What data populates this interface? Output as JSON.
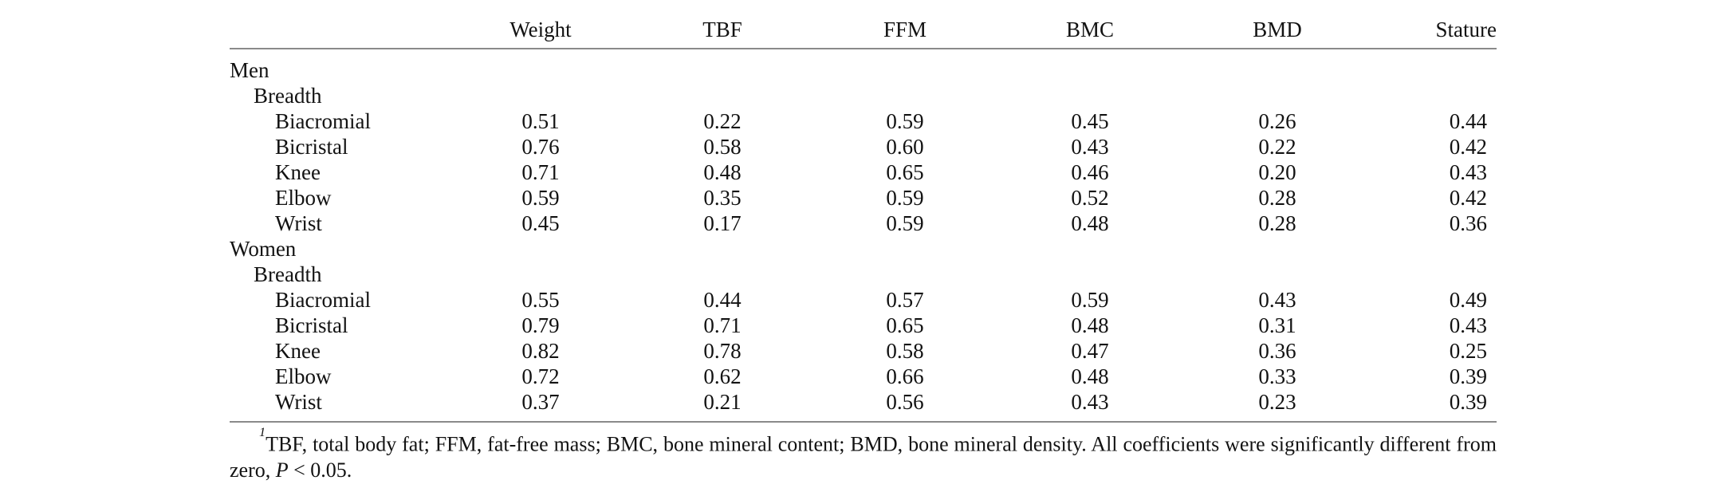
{
  "page": {
    "background": "#ffffff",
    "text_color": "#121212",
    "rule_color": "#8a8a8a"
  },
  "table": {
    "columns": [
      "",
      "Weight",
      "TBF",
      "FFM",
      "BMC",
      "BMD",
      "Stature"
    ],
    "rows": [
      {
        "label": "Men",
        "indent": 0,
        "values": [
          "",
          "",
          "",
          "",
          "",
          ""
        ]
      },
      {
        "label": "Breadth",
        "indent": 1,
        "values": [
          "",
          "",
          "",
          "",
          "",
          ""
        ]
      },
      {
        "label": "Biacromial",
        "indent": 2,
        "values": [
          "0.51",
          "0.22",
          "0.59",
          "0.45",
          "0.26",
          "0.44"
        ]
      },
      {
        "label": "Bicristal",
        "indent": 2,
        "values": [
          "0.76",
          "0.58",
          "0.60",
          "0.43",
          "0.22",
          "0.42"
        ]
      },
      {
        "label": "Knee",
        "indent": 2,
        "values": [
          "0.71",
          "0.48",
          "0.65",
          "0.46",
          "0.20",
          "0.43"
        ]
      },
      {
        "label": "Elbow",
        "indent": 2,
        "values": [
          "0.59",
          "0.35",
          "0.59",
          "0.52",
          "0.28",
          "0.42"
        ]
      },
      {
        "label": "Wrist",
        "indent": 2,
        "values": [
          "0.45",
          "0.17",
          "0.59",
          "0.48",
          "0.28",
          "0.36"
        ]
      },
      {
        "label": "Women",
        "indent": 0,
        "values": [
          "",
          "",
          "",
          "",
          "",
          ""
        ]
      },
      {
        "label": "Breadth",
        "indent": 1,
        "values": [
          "",
          "",
          "",
          "",
          "",
          ""
        ]
      },
      {
        "label": "Biacromial",
        "indent": 2,
        "values": [
          "0.55",
          "0.44",
          "0.57",
          "0.59",
          "0.43",
          "0.49"
        ]
      },
      {
        "label": "Bicristal",
        "indent": 2,
        "values": [
          "0.79",
          "0.71",
          "0.65",
          "0.48",
          "0.31",
          "0.43"
        ]
      },
      {
        "label": "Knee",
        "indent": 2,
        "values": [
          "0.82",
          "0.78",
          "0.58",
          "0.47",
          "0.36",
          "0.25"
        ]
      },
      {
        "label": "Elbow",
        "indent": 2,
        "values": [
          "0.72",
          "0.62",
          "0.66",
          "0.48",
          "0.33",
          "0.39"
        ]
      },
      {
        "label": "Wrist",
        "indent": 2,
        "values": [
          "0.37",
          "0.21",
          "0.56",
          "0.43",
          "0.23",
          "0.39"
        ]
      }
    ]
  },
  "footnote": {
    "marker": "1",
    "line1": "TBF, total body fat; FFM, fat-free mass; BMC, bone mineral content; BMD, bone mineral density. All coefficients were significantly different from",
    "line2_pre": "zero, ",
    "line2_italic": "P",
    "line2_post": " < 0.05."
  }
}
